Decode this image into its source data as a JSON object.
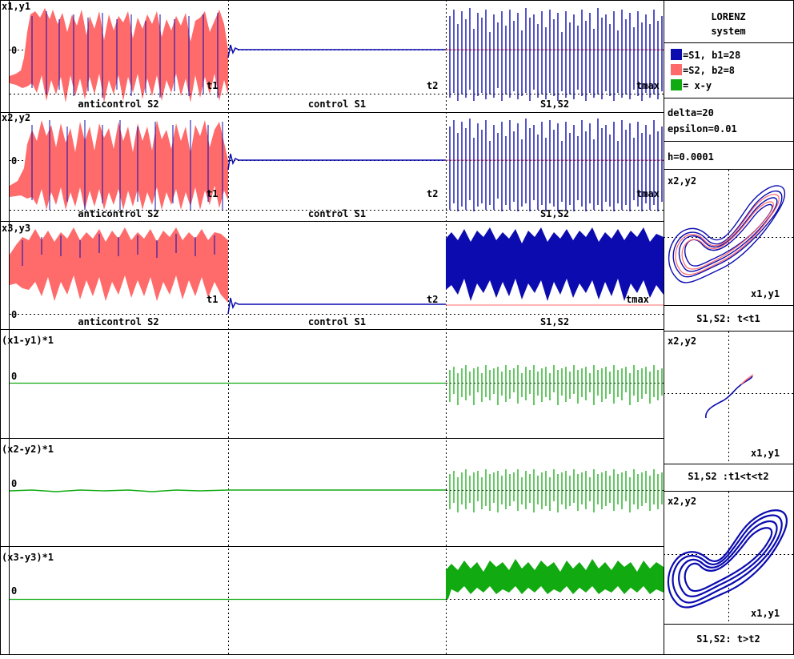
{
  "sidebar": {
    "title_line1": "LORENZ",
    "title_line2": "system",
    "legend": [
      {
        "color": "#0b0bb0",
        "label": "=S1, b1=28"
      },
      {
        "color": "#ff6b6b",
        "label": "=S2, b2=8"
      },
      {
        "color": "#11aa11",
        "label": "= x-y"
      }
    ],
    "param_delta": "delta=20",
    "param_epsilon": "epsilon=0.01",
    "param_h": "h=0.0001",
    "phase_panels": [
      {
        "y_label": "x2,y2",
        "x_label": "x1,y1",
        "caption": "S1,S2: t<t1"
      },
      {
        "y_label": "x2,y2",
        "x_label": "x1,y1",
        "caption": "S1,S2 :t1<t<t2"
      },
      {
        "y_label": "x2,y2",
        "x_label": "x1,y1",
        "caption": "S1,S2: t>t2"
      }
    ]
  },
  "phases": {
    "t1_label": "t1",
    "t2_label": "t2",
    "tmax_label": "tmax",
    "names": [
      "anticontrol S2",
      "control S1",
      "S1,S2"
    ]
  },
  "chart_data": [
    {
      "type": "line",
      "title": "x1,y1",
      "zero_label": "0",
      "series": [
        {
          "name": "S1",
          "color": "#0b0bb0"
        },
        {
          "name": "S2",
          "color": "#ff6b6b"
        }
      ]
    },
    {
      "type": "line",
      "title": "x2,y2",
      "zero_label": "0",
      "series": [
        {
          "name": "S1",
          "color": "#0b0bb0"
        },
        {
          "name": "S2",
          "color": "#ff6b6b"
        }
      ]
    },
    {
      "type": "line",
      "title": "x3,y3",
      "zero_label": "0",
      "series": [
        {
          "name": "S1",
          "color": "#0b0bb0"
        },
        {
          "name": "S2",
          "color": "#ff6b6b"
        }
      ]
    },
    {
      "type": "line",
      "title": "(x1-y1)*1",
      "zero_label": "0",
      "series": [
        {
          "name": "x-y",
          "color": "#11aa11"
        }
      ]
    },
    {
      "type": "line",
      "title": "(x2-y2)*1",
      "zero_label": "0",
      "series": [
        {
          "name": "x-y",
          "color": "#11aa11"
        }
      ]
    },
    {
      "type": "line",
      "title": "(x3-y3)*1",
      "zero_label": "0",
      "series": [
        {
          "name": "x-y",
          "color": "#11aa11"
        }
      ]
    }
  ],
  "colors": {
    "s1": "#0b0bb0",
    "s2": "#ff6b6b",
    "diff": "#11aa11",
    "grid": "#000000"
  }
}
